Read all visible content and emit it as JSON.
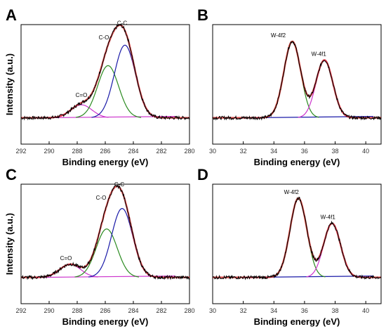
{
  "chart_data": [
    {
      "panel": "A",
      "type": "line",
      "xlabel": "Binding energy (eV)",
      "ylabel": "Intensity (a.u.)",
      "xlim": [
        292,
        280
      ],
      "x_reversed": true,
      "xticks": [
        292,
        290,
        288,
        286,
        284,
        282,
        280
      ],
      "peaks": [
        {
          "label": "C=O",
          "center": 287.7,
          "amplitude": 0.14
        },
        {
          "label": "C-O",
          "center": 285.8,
          "amplitude": 0.56
        },
        {
          "label": "C-C",
          "center": 284.6,
          "amplitude": 0.78
        }
      ],
      "series": [
        {
          "name": "raw",
          "color": "#000000"
        },
        {
          "name": "fit",
          "color": "#d42020"
        },
        {
          "name": "C=O",
          "color": "#cc33cc"
        },
        {
          "name": "C-O",
          "color": "#2a8a1f"
        },
        {
          "name": "C-C",
          "color": "#1a1aa8"
        },
        {
          "name": "background",
          "color": "#cc33cc"
        }
      ]
    },
    {
      "panel": "B",
      "type": "line",
      "xlabel": "Binding energy (eV)",
      "ylabel": "",
      "xlim": [
        30,
        41
      ],
      "x_reversed": false,
      "xticks": [
        30,
        32,
        34,
        36,
        38,
        40
      ],
      "peaks": [
        {
          "label": "W-4f2",
          "center": 35.2,
          "amplitude": 0.82
        },
        {
          "label": "W-4f1",
          "center": 37.3,
          "amplitude": 0.62
        }
      ],
      "series": [
        {
          "name": "raw",
          "color": "#000000"
        },
        {
          "name": "fit",
          "color": "#d42020"
        },
        {
          "name": "W-4f2",
          "color": "#2a8a1f"
        },
        {
          "name": "W-4f1",
          "color": "#cc33cc"
        },
        {
          "name": "background",
          "color": "#1a1aa8"
        }
      ]
    },
    {
      "panel": "C",
      "type": "line",
      "xlabel": "Binding energy (eV)",
      "ylabel": "Intensity (a.u.)",
      "xlim": [
        292,
        280
      ],
      "x_reversed": true,
      "xticks": [
        292,
        290,
        288,
        286,
        284,
        282,
        280
      ],
      "peaks": [
        {
          "label": "C=O",
          "center": 288.5,
          "amplitude": 0.14
        },
        {
          "label": "C-O",
          "center": 285.9,
          "amplitude": 0.52
        },
        {
          "label": "C-C",
          "center": 284.8,
          "amplitude": 0.74
        }
      ],
      "series": [
        {
          "name": "raw",
          "color": "#000000"
        },
        {
          "name": "fit",
          "color": "#d42020"
        },
        {
          "name": "C=O",
          "color": "#cc33cc"
        },
        {
          "name": "C-O",
          "color": "#2a8a1f"
        },
        {
          "name": "C-C",
          "color": "#1a1aa8"
        },
        {
          "name": "background",
          "color": "#cc33cc"
        }
      ]
    },
    {
      "panel": "D",
      "type": "line",
      "xlabel": "Binding energy (eV)",
      "ylabel": "",
      "xlim": [
        30,
        41
      ],
      "x_reversed": false,
      "xticks": [
        30,
        32,
        34,
        36,
        38,
        40
      ],
      "peaks": [
        {
          "label": "W-4f2",
          "center": 35.6,
          "amplitude": 0.85
        },
        {
          "label": "W-4f1",
          "center": 37.8,
          "amplitude": 0.58
        }
      ],
      "series": [
        {
          "name": "raw",
          "color": "#000000"
        },
        {
          "name": "fit",
          "color": "#d42020"
        },
        {
          "name": "W-4f2",
          "color": "#2a8a1f"
        },
        {
          "name": "W-4f1",
          "color": "#cc33cc"
        },
        {
          "name": "background",
          "color": "#1a1aa8"
        }
      ]
    }
  ]
}
